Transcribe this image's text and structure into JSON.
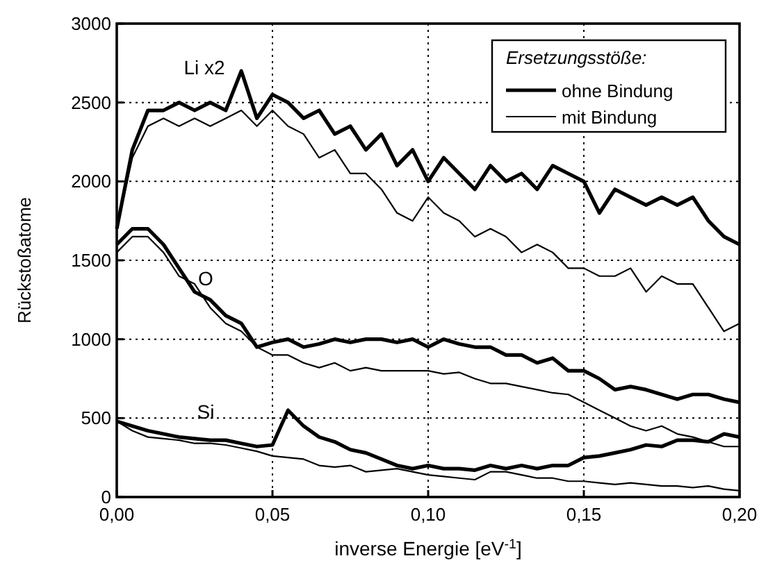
{
  "chart_data": {
    "type": "line",
    "xlabel": "inverse Energie [eV$^{-1}$]",
    "ylabel": "Rückstoßatome",
    "legend_title": "Ersetzungsstöße:",
    "legend": "top right",
    "grid": true,
    "line_style": "solid",
    "marker": "none",
    "xlim": [
      0,
      0.2
    ],
    "ylim": [
      0,
      3000
    ],
    "xticks": [
      {
        "value": 0,
        "label": "0,00"
      },
      {
        "value": 0.05,
        "label": "0,05"
      },
      {
        "value": 0.1,
        "label": "0,10"
      },
      {
        "value": 0.15,
        "label": "0,15"
      },
      {
        "value": 0.2,
        "label": "0,20"
      }
    ],
    "yticks": [
      0,
      500,
      1000,
      1500,
      2000,
      2500,
      3000
    ],
    "x": [
      0,
      0.005,
      0.01,
      0.015,
      0.02,
      0.025,
      0.03,
      0.035,
      0.04,
      0.045,
      0.05,
      0.055,
      0.06,
      0.065,
      0.07,
      0.075,
      0.08,
      0.085,
      0.09,
      0.095,
      0.1,
      0.105,
      0.11,
      0.115,
      0.12,
      0.125,
      0.13,
      0.135,
      0.14,
      0.145,
      0.15,
      0.155,
      0.16,
      0.165,
      0.17,
      0.175,
      0.18,
      0.185,
      0.19,
      0.195,
      0.2
    ],
    "series": [
      {
        "name": "ohne Bindung",
        "color": "#000000",
        "values": [
          1700,
          2200,
          2450,
          2450,
          2500,
          2450,
          2500,
          2450,
          2700,
          2400,
          2550,
          2500,
          2400,
          2450,
          2300,
          2350,
          2200,
          2300,
          2100,
          2200,
          2000,
          2150,
          2050,
          1950,
          2100,
          2000,
          2050,
          1950,
          2100,
          2050,
          2000,
          1800,
          1950,
          1900,
          1850,
          1900,
          1850,
          1900,
          1750,
          1650,
          1600
        ]
      },
      {
        "name": "mit Bindung",
        "color": "#000000",
        "values": [
          1700,
          2150,
          2350,
          2400,
          2350,
          2400,
          2350,
          2400,
          2450,
          2350,
          2450,
          2350,
          2300,
          2150,
          2200,
          2050,
          2050,
          1950,
          1800,
          1750,
          1900,
          1800,
          1750,
          1650,
          1700,
          1650,
          1550,
          1600,
          1550,
          1450,
          1450,
          1400,
          1400,
          1450,
          1300,
          1400,
          1350,
          1350,
          1200,
          1050,
          1100
        ]
      },
      {
        "color": "#000000",
        "values": [
          1600,
          1700,
          1700,
          1600,
          1450,
          1300,
          1250,
          1150,
          1100,
          950,
          980,
          1000,
          950,
          970,
          1000,
          980,
          1000,
          1000,
          980,
          1000,
          950,
          1000,
          970,
          950,
          950,
          900,
          900,
          850,
          880,
          800,
          800,
          750,
          680,
          700,
          680,
          650,
          620,
          650,
          650,
          620,
          600
        ]
      },
      {
        "color": "#000000",
        "values": [
          1550,
          1650,
          1650,
          1550,
          1400,
          1350,
          1200,
          1100,
          1050,
          950,
          900,
          900,
          850,
          820,
          850,
          800,
          820,
          800,
          800,
          800,
          800,
          780,
          790,
          750,
          720,
          720,
          700,
          680,
          660,
          650,
          600,
          550,
          500,
          450,
          420,
          450,
          400,
          380,
          350,
          320,
          320
        ]
      },
      {
        "color": "#000000",
        "values": [
          480,
          450,
          420,
          400,
          380,
          370,
          360,
          360,
          340,
          320,
          330,
          550,
          450,
          380,
          350,
          300,
          280,
          240,
          200,
          180,
          200,
          180,
          180,
          170,
          200,
          180,
          200,
          180,
          200,
          200,
          250,
          260,
          280,
          300,
          330,
          320,
          360,
          360,
          350,
          400,
          380
        ]
      },
      {
        "color": "#000000",
        "values": [
          480,
          420,
          380,
          370,
          360,
          340,
          340,
          330,
          310,
          290,
          260,
          250,
          240,
          200,
          190,
          200,
          160,
          170,
          180,
          160,
          140,
          130,
          120,
          110,
          160,
          160,
          140,
          120,
          120,
          100,
          100,
          90,
          80,
          90,
          80,
          70,
          70,
          60,
          70,
          50,
          40
        ]
      }
    ],
    "annotations": [
      "Li x2",
      "O",
      "Si"
    ]
  }
}
